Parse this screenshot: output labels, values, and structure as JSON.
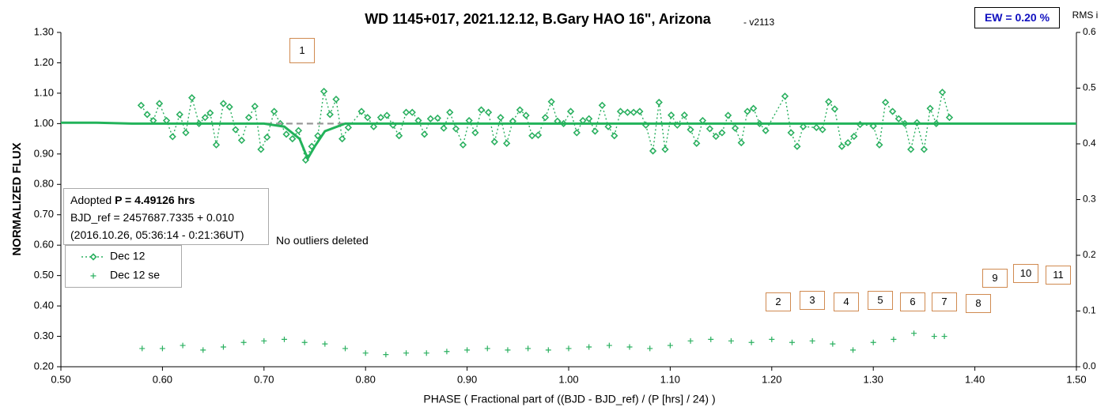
{
  "chart_data": {
    "type": "line",
    "title": "WD 1145+017, 2021.12.12, B.Gary HAO 16\", Arizona",
    "subtitle": " - v2113",
    "ew_label": "EW = 0.20 %",
    "y_label": "NORMALIZED FLUX",
    "y2_label": "RMS i",
    "x_label": "PHASE ( Fractional part of ((BJD - BJD_ref) / (P [hrs] / 24) )",
    "info": {
      "prefix": "Adopted ",
      "period": "P = 4.49126 hrs",
      "bjd": "BJD_ref = 2457687.7335 + 0.010",
      "date": "(2016.10.26, 05:36:14 - 0:21:36UT)"
    },
    "note": "No outliers deleted",
    "box_labels": [
      "1",
      "2",
      "3",
      "4",
      "5",
      "6",
      "7",
      "8",
      "9",
      "10",
      "11"
    ],
    "xlim": [
      0.5,
      1.5
    ],
    "ylim": [
      0.2,
      1.3
    ],
    "y2lim": [
      0,
      0.6
    ],
    "xticks": [
      {
        "value": 0.5,
        "label": "0.50"
      },
      {
        "value": 0.6,
        "label": "0.60"
      },
      {
        "value": 0.7,
        "label": "0.70"
      },
      {
        "value": 0.8,
        "label": "0.80"
      },
      {
        "value": 0.9,
        "label": "0.90"
      },
      {
        "value": 1.0,
        "label": "1.00"
      },
      {
        "value": 1.1,
        "label": "1.10"
      },
      {
        "value": 1.2,
        "label": "1.20"
      },
      {
        "value": 1.3,
        "label": "1.30"
      },
      {
        "value": 1.4,
        "label": "1.40"
      },
      {
        "value": 1.5,
        "label": "1.50"
      }
    ],
    "yticks": [
      {
        "value": 0.2,
        "label": "0.20"
      },
      {
        "value": 0.3,
        "label": "0.30"
      },
      {
        "value": 0.4,
        "label": "0.40"
      },
      {
        "value": 0.5,
        "label": "0.50"
      },
      {
        "value": 0.6,
        "label": "0.60"
      },
      {
        "value": 0.7,
        "label": "0.70"
      },
      {
        "value": 0.8,
        "label": "0.80"
      },
      {
        "value": 0.9,
        "label": "0.90"
      },
      {
        "value": 1.0,
        "label": "1.00"
      },
      {
        "value": 1.1,
        "label": "1.10"
      },
      {
        "value": 1.2,
        "label": "1.20"
      },
      {
        "value": 1.3,
        "label": "1.30"
      }
    ],
    "y2ticks": [
      {
        "value": 0,
        "label": "0.0"
      },
      0.1,
      0.2,
      0.3,
      0.4,
      0.5,
      0.6
    ],
    "series": [
      {
        "name": "Dec 12",
        "color": "#2bb060",
        "marker": "diamond",
        "line": "dotted",
        "x": [
          0.579,
          0.585,
          0.591,
          0.597,
          0.604,
          0.61,
          0.617,
          0.623,
          0.629,
          0.636,
          0.642,
          0.647,
          0.653,
          0.66,
          0.666,
          0.672,
          0.678,
          0.685,
          0.691,
          0.697,
          0.703,
          0.71,
          0.716,
          0.722,
          0.728,
          0.734,
          0.741,
          0.747,
          0.753,
          0.759,
          0.765,
          0.771,
          0.777,
          0.783,
          0.796,
          0.802,
          0.808,
          0.815,
          0.821,
          0.827,
          0.833,
          0.84,
          0.846,
          0.852,
          0.858,
          0.864,
          0.871,
          0.877,
          0.883,
          0.889,
          0.896,
          0.902,
          0.908,
          0.914,
          0.921,
          0.927,
          0.933,
          0.939,
          0.945,
          0.952,
          0.958,
          0.964,
          0.97,
          0.977,
          0.983,
          0.989,
          0.995,
          1.002,
          1.008,
          1.014,
          1.02,
          1.026,
          1.033,
          1.039,
          1.045,
          1.051,
          1.058,
          1.064,
          1.07,
          1.076,
          1.083,
          1.089,
          1.095,
          1.101,
          1.107,
          1.114,
          1.12,
          1.126,
          1.132,
          1.139,
          1.145,
          1.151,
          1.157,
          1.164,
          1.17,
          1.176,
          1.182,
          1.188,
          1.194,
          1.213,
          1.219,
          1.225,
          1.231,
          1.244,
          1.25,
          1.256,
          1.262,
          1.269,
          1.275,
          1.281,
          1.287,
          1.3,
          1.306,
          1.312,
          1.319,
          1.325,
          1.331,
          1.337,
          1.343,
          1.35,
          1.356,
          1.362,
          1.368,
          1.375
        ],
        "values": [
          1.06,
          1.03,
          1.01,
          1.066,
          1.01,
          0.957,
          1.03,
          0.97,
          1.085,
          1.0,
          1.02,
          1.035,
          0.93,
          1.066,
          1.055,
          0.98,
          0.945,
          1.02,
          1.057,
          0.915,
          0.955,
          1.04,
          1.0,
          0.965,
          0.95,
          0.977,
          0.88,
          0.925,
          0.96,
          1.106,
          1.03,
          1.08,
          0.95,
          0.987,
          1.04,
          1.02,
          0.99,
          1.02,
          1.027,
          0.995,
          0.96,
          1.037,
          1.037,
          1.01,
          0.965,
          1.016,
          1.018,
          0.985,
          1.037,
          0.983,
          0.93,
          1.01,
          0.97,
          1.045,
          1.037,
          0.94,
          1.02,
          0.935,
          1.008,
          1.045,
          1.027,
          0.96,
          0.962,
          1.02,
          1.072,
          1.008,
          1.0,
          1.04,
          0.97,
          1.01,
          1.016,
          0.975,
          1.06,
          0.99,
          0.96,
          1.04,
          1.037,
          1.037,
          1.04,
          0.995,
          0.91,
          1.07,
          0.915,
          1.028,
          0.995,
          1.028,
          0.98,
          0.935,
          1.01,
          0.983,
          0.958,
          0.97,
          1.027,
          0.985,
          0.937,
          1.04,
          1.05,
          1.0,
          0.977,
          1.09,
          0.97,
          0.925,
          0.99,
          0.987,
          0.98,
          1.072,
          1.048,
          0.925,
          0.937,
          0.958,
          0.997,
          0.992,
          0.93,
          1.07,
          1.04,
          1.016,
          1.0,
          0.915,
          1.003,
          0.915,
          1.05,
          1.0,
          1.103,
          1.02
        ]
      },
      {
        "name": "Dec 12 se",
        "color": "#2bb060",
        "marker": "plus",
        "line": "none",
        "x": [
          0.58,
          0.6,
          0.62,
          0.64,
          0.66,
          0.68,
          0.7,
          0.72,
          0.74,
          0.76,
          0.78,
          0.8,
          0.82,
          0.84,
          0.86,
          0.88,
          0.9,
          0.92,
          0.94,
          0.96,
          0.98,
          1.0,
          1.02,
          1.04,
          1.06,
          1.08,
          1.1,
          1.12,
          1.14,
          1.16,
          1.18,
          1.2,
          1.22,
          1.24,
          1.26,
          1.28,
          1.3,
          1.32,
          1.34,
          1.36,
          1.37
        ],
        "values": [
          0.26,
          0.26,
          0.27,
          0.255,
          0.265,
          0.28,
          0.285,
          0.29,
          0.28,
          0.275,
          0.26,
          0.245,
          0.24,
          0.245,
          0.245,
          0.25,
          0.255,
          0.26,
          0.255,
          0.26,
          0.255,
          0.26,
          0.265,
          0.27,
          0.265,
          0.26,
          0.27,
          0.285,
          0.29,
          0.285,
          0.28,
          0.29,
          0.28,
          0.285,
          0.275,
          0.255,
          0.28,
          0.29,
          0.31,
          0.3,
          0.3
        ]
      },
      {
        "color": "#999999",
        "marker": "none",
        "line": "dashed",
        "x": [
          0.57,
          1.5
        ],
        "values": [
          1.0,
          1.0
        ]
      },
      {
        "color": "#22b35a",
        "marker": "none",
        "line": "solid",
        "x": [
          0.5,
          0.535,
          0.57,
          0.7,
          0.72,
          0.735,
          0.743,
          0.75,
          0.76,
          0.78,
          1.5
        ],
        "values": [
          1.003,
          1.003,
          1.0,
          1.0,
          0.99,
          0.95,
          0.885,
          0.925,
          0.975,
          1.0,
          1.0
        ]
      }
    ]
  }
}
